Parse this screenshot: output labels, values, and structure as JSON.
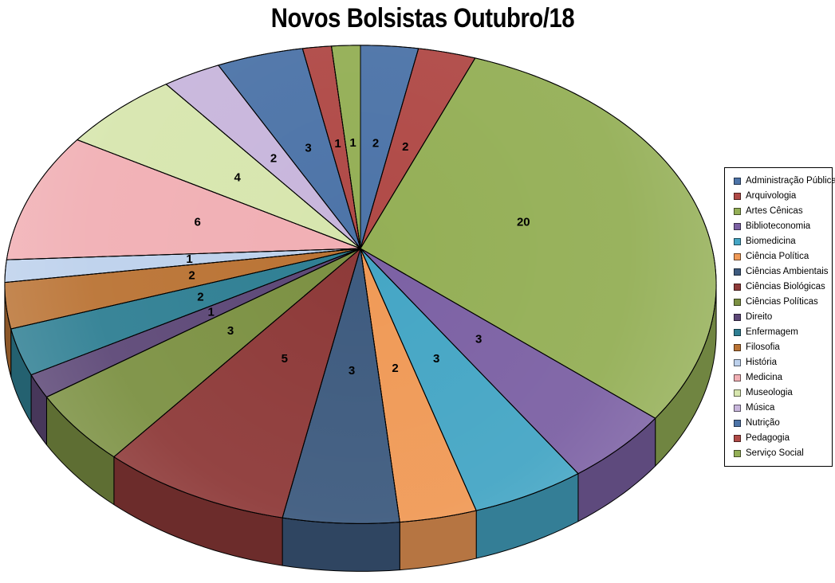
{
  "chart_data": {
    "type": "pie",
    "is_3d": true,
    "title": "Novos Bolsistas Outubro/18",
    "start_angle_deg": 0,
    "direction": "clockwise",
    "total": 66,
    "legend_position": "right",
    "slice_labels": "values",
    "background": "#FFFFFF",
    "label_color": "#000000",
    "categories": [
      "Administração Pública",
      "Arquivologia",
      "Artes Cênicas",
      "Biblioteconomia",
      "Biomedicina",
      "Ciência Política",
      "Ciências Ambientais",
      "Ciências Biológicas",
      "Ciências Políticas",
      "Direito",
      "Enfermagem",
      "Filosofia",
      "História",
      "Medicina",
      "Museologia",
      "Música",
      "Nutrição",
      "Pedagogia",
      "Serviço Social"
    ],
    "values": [
      2,
      2,
      20,
      3,
      3,
      2,
      3,
      5,
      3,
      1,
      2,
      2,
      1,
      6,
      4,
      2,
      3,
      1,
      1
    ],
    "colors": [
      "#4D74A8",
      "#B04A47",
      "#94AF56",
      "#7C61A4",
      "#45A6C5",
      "#F09A57",
      "#3E5B7F",
      "#8E3A39",
      "#7C9143",
      "#5D4877",
      "#2F7F93",
      "#BA7334",
      "#BDD1EC",
      "#F1AFB4",
      "#D7E6AE",
      "#C8B6DC",
      "#4D74A8",
      "#B04A47",
      "#94AF56"
    ]
  }
}
